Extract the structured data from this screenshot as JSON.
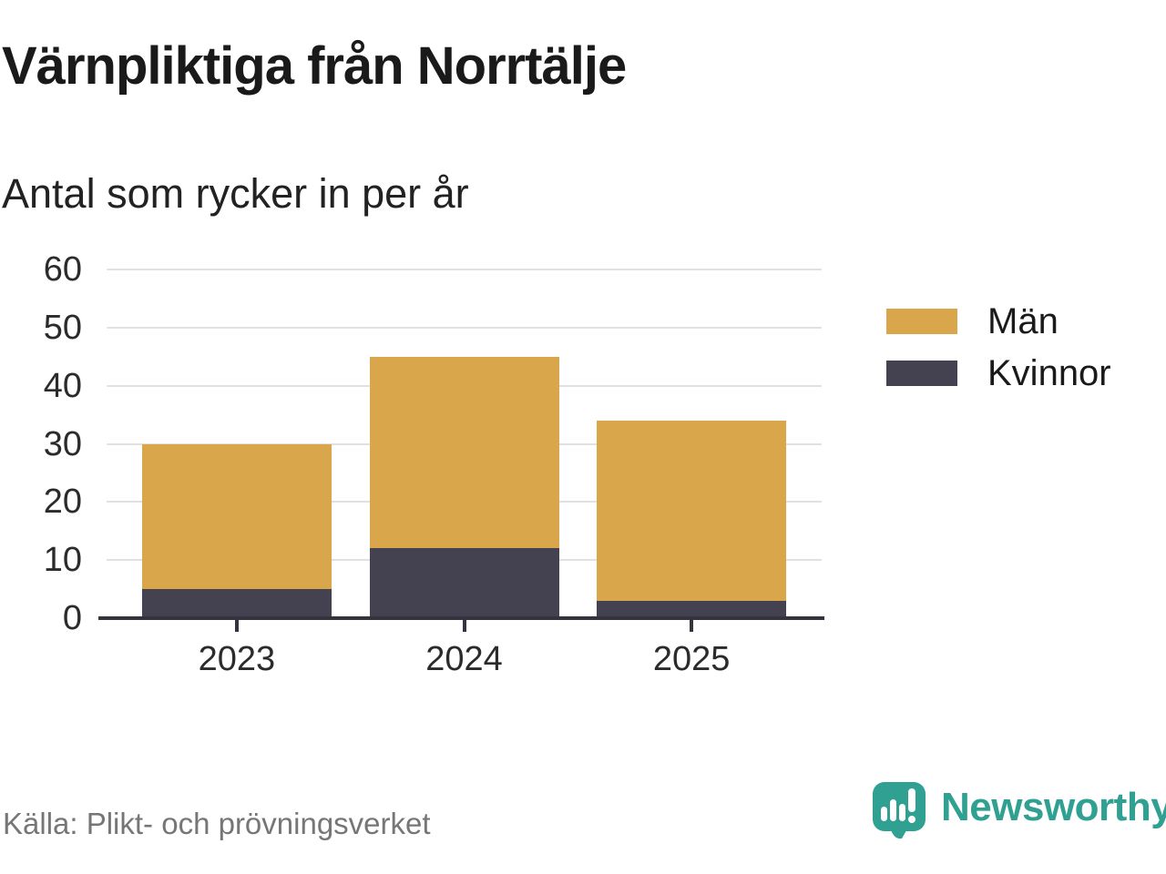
{
  "title": "Värnpliktiga från Norrtälje",
  "subtitle": "Antal som rycker in per år",
  "source": "Källa: Plikt- och prövningsverket",
  "brand": {
    "name": "Newsworthy",
    "color": "#2fa092"
  },
  "colors": {
    "men": "#d9a64c",
    "women": "#444150",
    "axis": "#35333d",
    "grid": "#e1e1e4",
    "text": "#1a1a1a",
    "muted_text": "#767676"
  },
  "chart_data": {
    "type": "bar",
    "stacked": true,
    "title": "Värnpliktiga från Norrtälje",
    "subtitle": "Antal som rycker in per år",
    "categories": [
      "2023",
      "2024",
      "2025"
    ],
    "series": [
      {
        "name": "Män",
        "color": "#d9a64c",
        "values": [
          25,
          33,
          31
        ]
      },
      {
        "name": "Kvinnor",
        "color": "#444150",
        "values": [
          5,
          12,
          3
        ]
      }
    ],
    "stack_order_bottom_to_top": [
      "Kvinnor",
      "Män"
    ],
    "totals": [
      30,
      45,
      34
    ],
    "xlabel": "",
    "ylabel": "",
    "ylim": [
      0,
      60
    ],
    "yticks": [
      0,
      10,
      20,
      30,
      40,
      50,
      60
    ],
    "grid": true,
    "legend_position": "right"
  }
}
